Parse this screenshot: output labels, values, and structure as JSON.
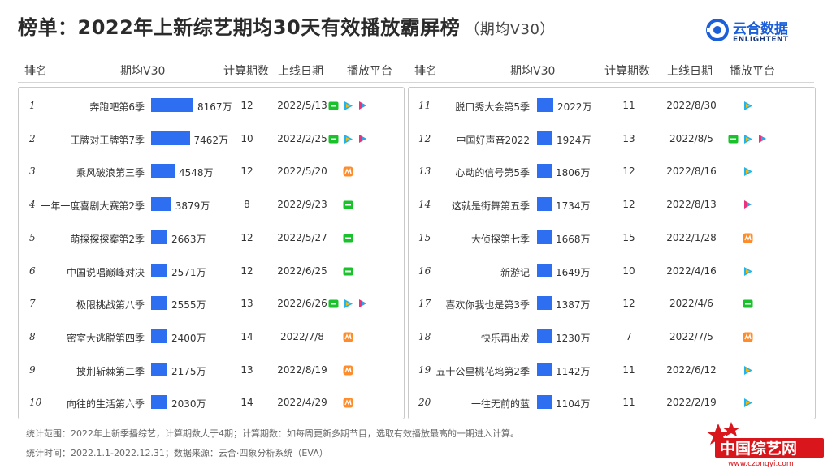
{
  "title": "榜单：2022年上新综艺期均30天有效播放霸屏榜",
  "subtitle": "（期均V30）",
  "logo": {
    "cn": "云合数据",
    "en": "ENLIGHTENT"
  },
  "headers": {
    "rank": "排名",
    "v30": "期均V30",
    "periods": "计算期数",
    "date": "上线日期",
    "platform": "播放平台"
  },
  "colors": {
    "bar": "#2d6ff0",
    "iqiyi": "#19c12b",
    "tencent": "#1fb6f0",
    "youku": "#e8327d",
    "mango": "#ff8c2a"
  },
  "chart_data": {
    "type": "bar",
    "unit": "万",
    "rows": [
      {
        "rank": "1",
        "name": "奔跑吧第6季",
        "value": 8167,
        "label": "8167万",
        "periods": "12",
        "date": "2022/5/13",
        "platforms": [
          "iqiyi",
          "tencent",
          "youku"
        ]
      },
      {
        "rank": "2",
        "name": "王牌对王牌第7季",
        "value": 7462,
        "label": "7462万",
        "periods": "10",
        "date": "2022/2/25",
        "platforms": [
          "iqiyi",
          "tencent",
          "youku"
        ]
      },
      {
        "rank": "3",
        "name": "乘风破浪第三季",
        "value": 4548,
        "label": "4548万",
        "periods": "12",
        "date": "2022/5/20",
        "platforms": [
          "mango"
        ]
      },
      {
        "rank": "4",
        "name": "一年一度喜剧大赛第2季",
        "value": 3879,
        "label": "3879万",
        "periods": "8",
        "date": "2022/9/23",
        "platforms": [
          "iqiyi"
        ]
      },
      {
        "rank": "5",
        "name": "萌探探探案第2季",
        "value": 2663,
        "label": "2663万",
        "periods": "12",
        "date": "2022/5/27",
        "platforms": [
          "iqiyi"
        ]
      },
      {
        "rank": "6",
        "name": "中国说唱巅峰对决",
        "value": 2571,
        "label": "2571万",
        "periods": "12",
        "date": "2022/6/25",
        "platforms": [
          "iqiyi"
        ]
      },
      {
        "rank": "7",
        "name": "极限挑战第八季",
        "value": 2555,
        "label": "2555万",
        "periods": "13",
        "date": "2022/6/26",
        "platforms": [
          "iqiyi",
          "tencent",
          "youku"
        ]
      },
      {
        "rank": "8",
        "name": "密室大逃脱第四季",
        "value": 2400,
        "label": "2400万",
        "periods": "14",
        "date": "2022/7/8",
        "platforms": [
          "mango"
        ]
      },
      {
        "rank": "9",
        "name": "披荆斩棘第二季",
        "value": 2175,
        "label": "2175万",
        "periods": "13",
        "date": "2022/8/19",
        "platforms": [
          "mango"
        ]
      },
      {
        "rank": "10",
        "name": "向往的生活第六季",
        "value": 2030,
        "label": "2030万",
        "periods": "14",
        "date": "2022/4/29",
        "platforms": [
          "mango"
        ]
      },
      {
        "rank": "11",
        "name": "脱口秀大会第5季",
        "value": 2022,
        "label": "2022万",
        "periods": "11",
        "date": "2022/8/30",
        "platforms": [
          "tencent"
        ]
      },
      {
        "rank": "12",
        "name": "中国好声音2022",
        "value": 1924,
        "label": "1924万",
        "periods": "13",
        "date": "2022/8/5",
        "platforms": [
          "iqiyi",
          "tencent",
          "youku"
        ]
      },
      {
        "rank": "13",
        "name": "心动的信号第5季",
        "value": 1806,
        "label": "1806万",
        "periods": "12",
        "date": "2022/8/16",
        "platforms": [
          "tencent"
        ]
      },
      {
        "rank": "14",
        "name": "这就是街舞第五季",
        "value": 1734,
        "label": "1734万",
        "periods": "12",
        "date": "2022/8/13",
        "platforms": [
          "youku"
        ]
      },
      {
        "rank": "15",
        "name": "大侦探第七季",
        "value": 1668,
        "label": "1668万",
        "periods": "15",
        "date": "2022/1/28",
        "platforms": [
          "mango"
        ]
      },
      {
        "rank": "16",
        "name": "新游记",
        "value": 1649,
        "label": "1649万",
        "periods": "10",
        "date": "2022/4/16",
        "platforms": [
          "tencent"
        ]
      },
      {
        "rank": "17",
        "name": "喜欢你我也是第3季",
        "value": 1387,
        "label": "1387万",
        "periods": "12",
        "date": "2022/4/6",
        "platforms": [
          "iqiyi"
        ]
      },
      {
        "rank": "18",
        "name": "快乐再出发",
        "value": 1230,
        "label": "1230万",
        "periods": "7",
        "date": "2022/7/5",
        "platforms": [
          "mango"
        ]
      },
      {
        "rank": "19",
        "name": "五十公里桃花坞第2季",
        "value": 1142,
        "label": "1142万",
        "periods": "11",
        "date": "2022/6/12",
        "platforms": [
          "tencent"
        ]
      },
      {
        "rank": "20",
        "name": "一往无前的蓝",
        "value": 1104,
        "label": "1104万",
        "periods": "11",
        "date": "2022/2/19",
        "platforms": [
          "tencent"
        ]
      }
    ]
  },
  "footer": {
    "line1": "统计范围：2022年上新季播综艺，计算期数大于4期；计算期数：如每周更新多期节目，选取有效播放最高的一期进入计算。",
    "line2": "统计时间：2022.1.1-2022.12.31；数据来源：云合·四象分析系统（EVA）"
  },
  "stamp": {
    "cn": "中国综艺网",
    "url": "www.czongyi.com"
  }
}
